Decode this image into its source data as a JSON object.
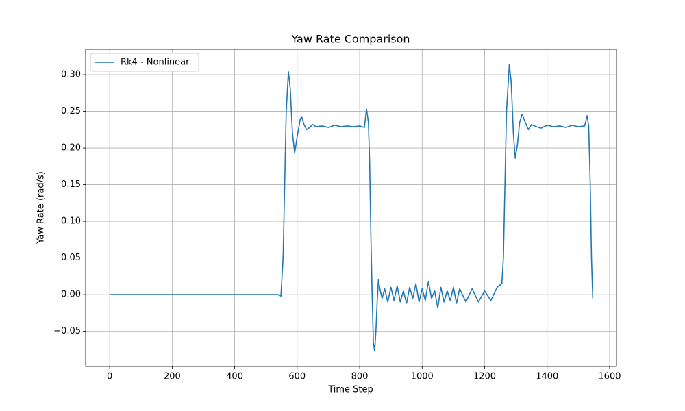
{
  "chart_data": {
    "type": "line",
    "title": "Yaw Rate Comparison",
    "xlabel": "Time Step",
    "ylabel": "Yaw Rate (rad/s)",
    "x": [
      0,
      540,
      548,
      555,
      560,
      565,
      572,
      578,
      585,
      592,
      600,
      610,
      615,
      622,
      630,
      640,
      650,
      660,
      680,
      700,
      720,
      740,
      760,
      780,
      800,
      815,
      822,
      828,
      832,
      836,
      840,
      844,
      848,
      852,
      856,
      860,
      866,
      872,
      880,
      890,
      900,
      910,
      920,
      930,
      940,
      950,
      960,
      970,
      980,
      990,
      1000,
      1010,
      1020,
      1030,
      1040,
      1050,
      1060,
      1070,
      1080,
      1090,
      1100,
      1110,
      1120,
      1140,
      1160,
      1180,
      1200,
      1220,
      1240,
      1255,
      1260,
      1265,
      1270,
      1279,
      1285,
      1292,
      1298,
      1305,
      1312,
      1320,
      1330,
      1340,
      1350,
      1360,
      1380,
      1400,
      1420,
      1440,
      1460,
      1480,
      1500,
      1520,
      1528,
      1533,
      1538,
      1542,
      1546
    ],
    "series": [
      {
        "name": "Rk4 - Nonlinear",
        "color": "#1f77b4",
        "values": [
          0,
          0,
          -0.002,
          0.05,
          0.15,
          0.25,
          0.304,
          0.28,
          0.22,
          0.193,
          0.215,
          0.24,
          0.242,
          0.232,
          0.225,
          0.228,
          0.232,
          0.229,
          0.23,
          0.228,
          0.231,
          0.229,
          0.23,
          0.229,
          0.23,
          0.228,
          0.253,
          0.235,
          0.18,
          0.08,
          0.0,
          -0.065,
          -0.077,
          -0.05,
          -0.01,
          0.02,
          0.005,
          -0.005,
          0.008,
          -0.01,
          0.01,
          -0.008,
          0.012,
          -0.01,
          0.005,
          -0.012,
          0.01,
          -0.005,
          0.015,
          -0.01,
          0.008,
          -0.008,
          0.018,
          -0.005,
          0.005,
          -0.018,
          0.01,
          -0.01,
          0.005,
          -0.008,
          0.01,
          -0.012,
          0.008,
          -0.01,
          0.008,
          -0.01,
          0.005,
          -0.008,
          0.01,
          0.015,
          0.05,
          0.15,
          0.25,
          0.314,
          0.29,
          0.22,
          0.186,
          0.205,
          0.235,
          0.246,
          0.235,
          0.225,
          0.232,
          0.23,
          0.227,
          0.231,
          0.229,
          0.23,
          0.228,
          0.231,
          0.229,
          0.23,
          0.244,
          0.23,
          0.15,
          0.05,
          -0.005
        ]
      }
    ],
    "xlim": [
      -77,
      1622
    ],
    "ylim": [
      -0.098,
      0.3346
    ],
    "xticks": [
      0,
      200,
      400,
      600,
      800,
      1000,
      1200,
      1400,
      1600
    ],
    "yticks": [
      {
        "value": -0.05,
        "label": "−0.05"
      },
      {
        "value": 0,
        "label": "0.00"
      },
      {
        "value": 0.05,
        "label": "0.05"
      },
      {
        "value": 0.1,
        "label": "0.10"
      },
      {
        "value": 0.15,
        "label": "0.15"
      },
      {
        "value": 0.2,
        "label": "0.20"
      },
      {
        "value": 0.25,
        "label": "0.25"
      },
      {
        "value": 0.3,
        "label": "0.30"
      }
    ],
    "grid": true,
    "legend": "upper left"
  }
}
